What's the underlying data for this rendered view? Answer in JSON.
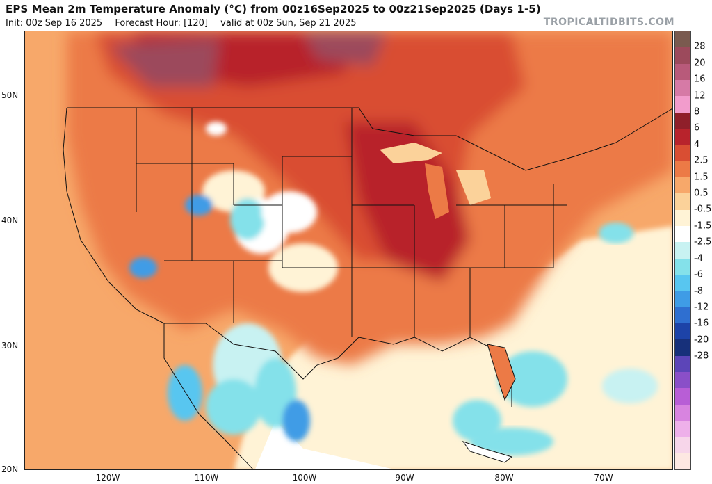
{
  "header": {
    "title": "EPS Mean 2m Temperature Anomaly (°C) from 00z16Sep2025 to 00z21Sep2025 (Days 1-5)",
    "init": "Init: 00z Sep 16 2025",
    "forecast_hour": "Forecast Hour: [120]",
    "valid": "valid at 00z Sun, Sep 21 2025"
  },
  "brand": "TROPICALTIDBITS.COM",
  "axes": {
    "lat_labels": [
      "50N",
      "40N",
      "30N",
      "20N"
    ],
    "lon_labels": [
      "120W",
      "110W",
      "100W",
      "90W",
      "80W",
      "70W"
    ]
  },
  "colorbar": {
    "labels": [
      "28",
      "20",
      "16",
      "12",
      "8",
      "6",
      "4",
      "2.5",
      "1.5",
      "0.5",
      "-0.5",
      "-1.5",
      "-2.5",
      "-4",
      "-6",
      "-8",
      "-12",
      "-16",
      "-20",
      "-28"
    ],
    "colors": [
      "#7a5a4f",
      "#9c4a5c",
      "#b85a7a",
      "#d67aa6",
      "#f29ccc",
      "#8f1f2a",
      "#b8232c",
      "#d94e33",
      "#ec7a46",
      "#f7a86a",
      "#fbd29a",
      "#fff3d6",
      "#ffffff",
      "#c8f2f2",
      "#84e1ea",
      "#58c6f0",
      "#3f9ce6",
      "#2f6fd0",
      "#1d43a8",
      "#17307a",
      "#5c45b8",
      "#8a4fc8",
      "#b85ed6",
      "#d884e0",
      "#eeb0ea",
      "#f7d6ea",
      "#fde8e2"
    ]
  },
  "map": {
    "region": "Contiguous United States, northern Mexico and southern Canada",
    "colors": {
      "ocean_warm": "#fbd29a",
      "land_warm": "#ec7a46",
      "land_hot": "#d94e33",
      "land_very_hot": "#b8232c",
      "canada_hot": "#9c4a5c",
      "neutral": "#ffffff",
      "cool": "#84e1ea",
      "cold": "#3f9ce6",
      "border": "#111111"
    }
  }
}
